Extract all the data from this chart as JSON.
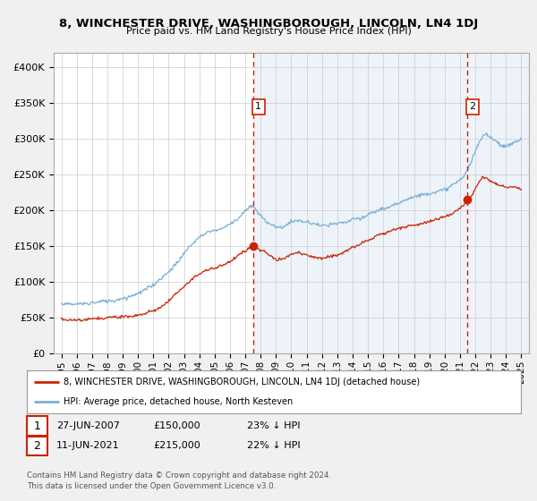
{
  "title": "8, WINCHESTER DRIVE, WASHINGBOROUGH, LINCOLN, LN4 1DJ",
  "subtitle": "Price paid vs. HM Land Registry's House Price Index (HPI)",
  "background_color": "#f0f0f0",
  "plot_bg_color": "#ffffff",
  "plot_fill_color": "#dce9f5",
  "ylim": [
    0,
    420000
  ],
  "yticks": [
    0,
    50000,
    100000,
    150000,
    200000,
    250000,
    300000,
    350000,
    400000
  ],
  "ytick_labels": [
    "£0",
    "£50K",
    "£100K",
    "£150K",
    "£200K",
    "£250K",
    "£300K",
    "£350K",
    "£400K"
  ],
  "sale1_date": "27-JUN-2007",
  "sale1_price": 150000,
  "sale1_label": "23% ↓ HPI",
  "sale2_date": "11-JUN-2021",
  "sale2_price": 215000,
  "sale2_label": "22% ↓ HPI",
  "legend_line1": "8, WINCHESTER DRIVE, WASHINGBOROUGH, LINCOLN, LN4 1DJ (detached house)",
  "legend_line2": "HPI: Average price, detached house, North Kesteven",
  "footer": "Contains HM Land Registry data © Crown copyright and database right 2024.\nThis data is licensed under the Open Government Licence v3.0.",
  "hpi_color": "#7ab0d4",
  "price_color": "#cc2200",
  "dashed_line_color": "#cc2200",
  "grid_color": "#cccccc",
  "sale1_x": 2007.5,
  "sale2_x": 2021.45,
  "hpi_points": [
    [
      1995.0,
      63000
    ],
    [
      1995.5,
      62000
    ],
    [
      1996.0,
      62500
    ],
    [
      1996.5,
      64000
    ],
    [
      1997.0,
      66000
    ],
    [
      1997.5,
      67000
    ],
    [
      1998.0,
      68000
    ],
    [
      1998.5,
      70000
    ],
    [
      1999.0,
      72000
    ],
    [
      1999.5,
      74000
    ],
    [
      2000.0,
      77000
    ],
    [
      2000.5,
      82000
    ],
    [
      2001.0,
      88000
    ],
    [
      2001.5,
      96000
    ],
    [
      2002.0,
      108000
    ],
    [
      2002.5,
      122000
    ],
    [
      2003.0,
      135000
    ],
    [
      2003.5,
      148000
    ],
    [
      2004.0,
      158000
    ],
    [
      2004.5,
      165000
    ],
    [
      2005.0,
      168000
    ],
    [
      2005.5,
      172000
    ],
    [
      2006.0,
      178000
    ],
    [
      2006.5,
      185000
    ],
    [
      2007.0,
      195000
    ],
    [
      2007.25,
      200000
    ],
    [
      2007.5,
      202000
    ],
    [
      2007.75,
      196000
    ],
    [
      2008.0,
      188000
    ],
    [
      2008.5,
      178000
    ],
    [
      2009.0,
      172000
    ],
    [
      2009.5,
      175000
    ],
    [
      2010.0,
      180000
    ],
    [
      2010.5,
      182000
    ],
    [
      2011.0,
      180000
    ],
    [
      2011.5,
      178000
    ],
    [
      2012.0,
      177000
    ],
    [
      2012.5,
      178000
    ],
    [
      2013.0,
      180000
    ],
    [
      2013.5,
      183000
    ],
    [
      2014.0,
      188000
    ],
    [
      2014.5,
      190000
    ],
    [
      2015.0,
      196000
    ],
    [
      2015.5,
      200000
    ],
    [
      2016.0,
      205000
    ],
    [
      2016.5,
      210000
    ],
    [
      2017.0,
      215000
    ],
    [
      2017.5,
      220000
    ],
    [
      2018.0,
      225000
    ],
    [
      2018.5,
      228000
    ],
    [
      2019.0,
      230000
    ],
    [
      2019.5,
      232000
    ],
    [
      2020.0,
      235000
    ],
    [
      2020.5,
      242000
    ],
    [
      2021.0,
      252000
    ],
    [
      2021.25,
      258000
    ],
    [
      2021.5,
      265000
    ],
    [
      2021.75,
      278000
    ],
    [
      2022.0,
      292000
    ],
    [
      2022.25,
      305000
    ],
    [
      2022.5,
      315000
    ],
    [
      2022.75,
      318000
    ],
    [
      2023.0,
      315000
    ],
    [
      2023.25,
      310000
    ],
    [
      2023.5,
      305000
    ],
    [
      2023.75,
      300000
    ],
    [
      2024.0,
      298000
    ],
    [
      2024.5,
      302000
    ],
    [
      2025.0,
      305000
    ]
  ],
  "price_points": [
    [
      1995.0,
      48000
    ],
    [
      1995.5,
      46000
    ],
    [
      1996.0,
      47000
    ],
    [
      1996.5,
      46500
    ],
    [
      1997.0,
      47000
    ],
    [
      1997.5,
      46000
    ],
    [
      1998.0,
      47500
    ],
    [
      1998.5,
      48000
    ],
    [
      1999.0,
      49000
    ],
    [
      1999.5,
      50000
    ],
    [
      2000.0,
      52000
    ],
    [
      2000.5,
      55000
    ],
    [
      2001.0,
      58000
    ],
    [
      2001.5,
      64000
    ],
    [
      2002.0,
      72000
    ],
    [
      2002.5,
      82000
    ],
    [
      2003.0,
      92000
    ],
    [
      2003.5,
      102000
    ],
    [
      2004.0,
      112000
    ],
    [
      2004.5,
      118000
    ],
    [
      2005.0,
      120000
    ],
    [
      2005.5,
      124000
    ],
    [
      2006.0,
      128000
    ],
    [
      2006.5,
      136000
    ],
    [
      2007.0,
      142000
    ],
    [
      2007.25,
      148000
    ],
    [
      2007.5,
      150000
    ],
    [
      2007.75,
      147000
    ],
    [
      2008.0,
      143000
    ],
    [
      2008.5,
      135000
    ],
    [
      2009.0,
      128000
    ],
    [
      2009.5,
      130000
    ],
    [
      2010.0,
      135000
    ],
    [
      2010.5,
      138000
    ],
    [
      2011.0,
      136000
    ],
    [
      2011.5,
      134000
    ],
    [
      2012.0,
      132000
    ],
    [
      2012.5,
      135000
    ],
    [
      2013.0,
      138000
    ],
    [
      2013.5,
      142000
    ],
    [
      2014.0,
      148000
    ],
    [
      2014.5,
      152000
    ],
    [
      2015.0,
      158000
    ],
    [
      2015.5,
      162000
    ],
    [
      2016.0,
      166000
    ],
    [
      2016.5,
      170000
    ],
    [
      2017.0,
      173000
    ],
    [
      2017.5,
      176000
    ],
    [
      2018.0,
      180000
    ],
    [
      2018.5,
      183000
    ],
    [
      2019.0,
      185000
    ],
    [
      2019.5,
      188000
    ],
    [
      2020.0,
      190000
    ],
    [
      2020.5,
      196000
    ],
    [
      2021.0,
      204000
    ],
    [
      2021.25,
      210000
    ],
    [
      2021.5,
      215000
    ],
    [
      2021.75,
      222000
    ],
    [
      2022.0,
      232000
    ],
    [
      2022.25,
      242000
    ],
    [
      2022.5,
      250000
    ],
    [
      2022.75,
      248000
    ],
    [
      2023.0,
      245000
    ],
    [
      2023.25,
      242000
    ],
    [
      2023.5,
      240000
    ],
    [
      2023.75,
      238000
    ],
    [
      2024.0,
      237000
    ],
    [
      2024.5,
      237000
    ],
    [
      2025.0,
      235000
    ]
  ]
}
